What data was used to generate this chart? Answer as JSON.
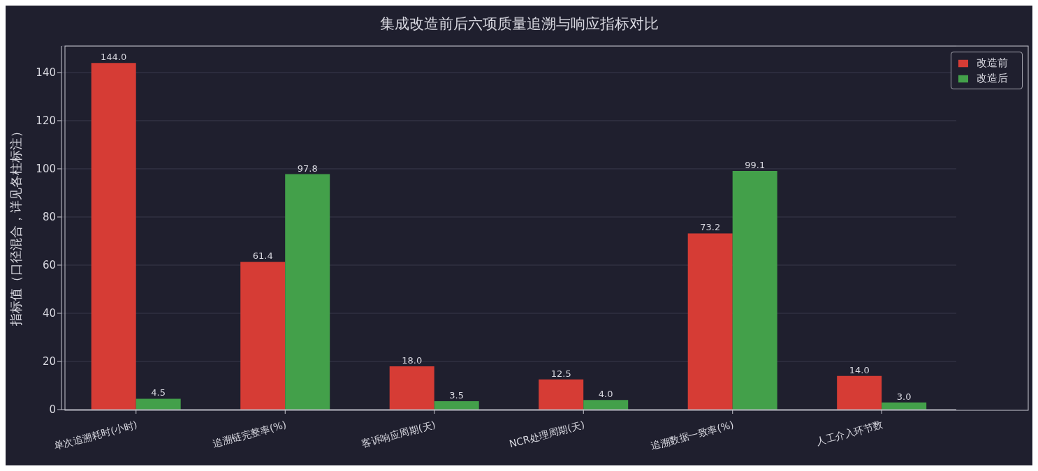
{
  "chart_data": {
    "type": "bar",
    "title": "集成改造前后六项质量追溯与响应指标对比",
    "ylabel": "指标值（口径混合，详见各柱标注）",
    "categories": [
      "单次追溯耗时(小时)",
      "追溯链完整率(%)",
      "客诉响应周期(天)",
      "NCR处理周期(天)",
      "追溯数据一致率(%)",
      "人工介入环节数"
    ],
    "series": [
      {
        "name": "改造前",
        "color": "#d63c35",
        "values": [
          144.0,
          61.4,
          18.0,
          12.5,
          73.2,
          14.0
        ],
        "value_labels": [
          "144.0",
          "61.4",
          "18.0",
          "12.5",
          "73.2",
          "14.0"
        ]
      },
      {
        "name": "改造后",
        "color": "#43a04a",
        "values": [
          4.5,
          97.8,
          3.5,
          4.0,
          99.1,
          3.0
        ],
        "value_labels": [
          "4.5",
          "97.8",
          "3.5",
          "4.0",
          "99.1",
          "3.0"
        ]
      }
    ],
    "ylim": [
      0,
      151
    ],
    "yticks": [
      0,
      20,
      40,
      60,
      80,
      100,
      120,
      140
    ],
    "grid": "y",
    "legend": "top right"
  }
}
